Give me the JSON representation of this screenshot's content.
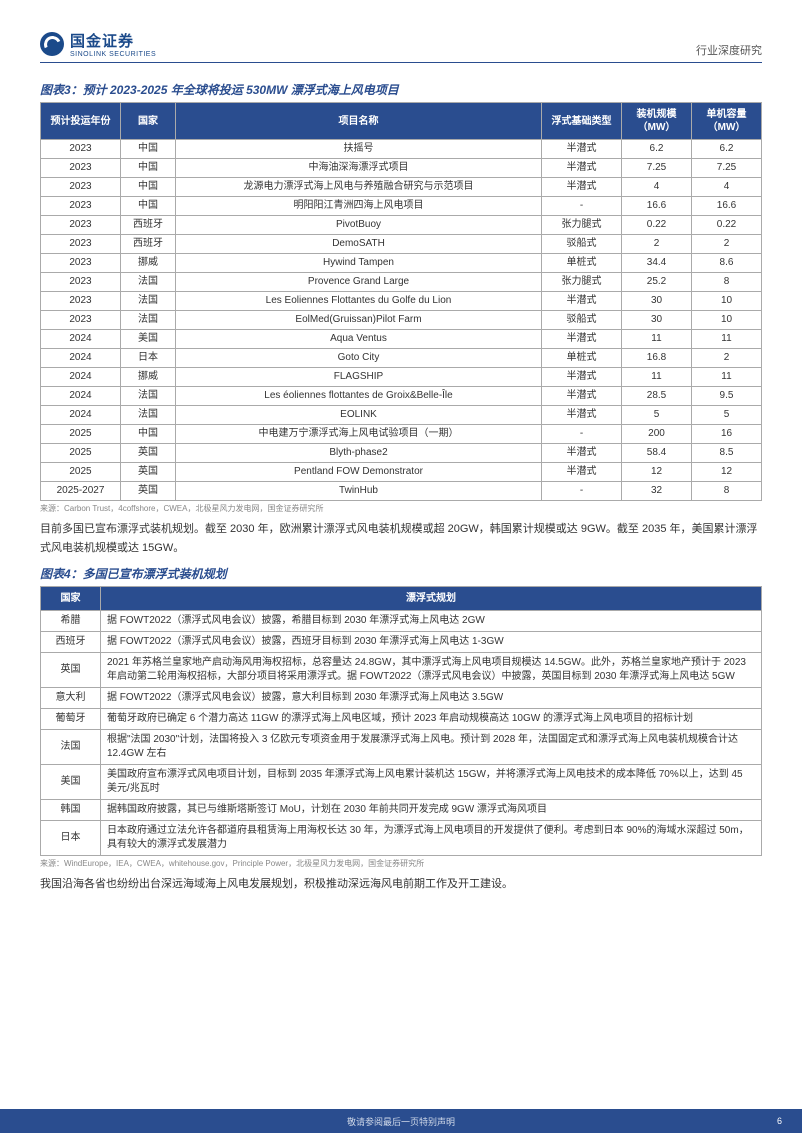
{
  "header": {
    "logo_cn": "国金证券",
    "logo_en": "SINOLINK SECURITIES",
    "doc_type": "行业深度研究"
  },
  "chart3": {
    "title": "图表3：预计 2023-2025 年全球将投运 530MW 漂浮式海上风电项目",
    "columns": [
      "预计投运年份",
      "国家",
      "项目名称",
      "浮式基础类型",
      "装机规模（MW）",
      "单机容量（MW）"
    ],
    "rows": [
      [
        "2023",
        "中国",
        "扶摇号",
        "半潜式",
        "6.2",
        "6.2"
      ],
      [
        "2023",
        "中国",
        "中海油深海漂浮式项目",
        "半潜式",
        "7.25",
        "7.25"
      ],
      [
        "2023",
        "中国",
        "龙源电力漂浮式海上风电与养殖融合研究与示范项目",
        "半潜式",
        "4",
        "4"
      ],
      [
        "2023",
        "中国",
        "明阳阳江青洲四海上风电项目",
        "-",
        "16.6",
        "16.6"
      ],
      [
        "2023",
        "西班牙",
        "PivotBuoy",
        "张力腿式",
        "0.22",
        "0.22"
      ],
      [
        "2023",
        "西班牙",
        "DemoSATH",
        "驳船式",
        "2",
        "2"
      ],
      [
        "2023",
        "挪威",
        "Hywind Tampen",
        "单桩式",
        "34.4",
        "8.6"
      ],
      [
        "2023",
        "法国",
        "Provence Grand Large",
        "张力腿式",
        "25.2",
        "8"
      ],
      [
        "2023",
        "法国",
        "Les Eoliennes Flottantes du Golfe du Lion",
        "半潜式",
        "30",
        "10"
      ],
      [
        "2023",
        "法国",
        "EolMed(Gruissan)Pilot Farm",
        "驳船式",
        "30",
        "10"
      ],
      [
        "2024",
        "美国",
        "Aqua Ventus",
        "半潜式",
        "11",
        "11"
      ],
      [
        "2024",
        "日本",
        "Goto City",
        "单桩式",
        "16.8",
        "2"
      ],
      [
        "2024",
        "挪威",
        "FLAGSHIP",
        "半潜式",
        "11",
        "11"
      ],
      [
        "2024",
        "法国",
        "Les éoliennes flottantes de Groix&Belle-Île",
        "半潜式",
        "28.5",
        "9.5"
      ],
      [
        "2024",
        "法国",
        "EOLINK",
        "半潜式",
        "5",
        "5"
      ],
      [
        "2025",
        "中国",
        "中电建万宁漂浮式海上风电试验项目（一期）",
        "-",
        "200",
        "16"
      ],
      [
        "2025",
        "英国",
        "Blyth-phase2",
        "半潜式",
        "58.4",
        "8.5"
      ],
      [
        "2025",
        "英国",
        "Pentland FOW Demonstrator",
        "半潜式",
        "12",
        "12"
      ],
      [
        "2025-2027",
        "英国",
        "TwinHub",
        "-",
        "32",
        "8"
      ]
    ],
    "source": "来源：Carbon Trust，4coffshore，CWEA，北极星风力发电网，国金证券研究所"
  },
  "para1": "目前多国已宣布漂浮式装机规划。截至 2030 年，欧洲累计漂浮式风电装机规模或超 20GW，韩国累计规模或达 9GW。截至 2035 年，美国累计漂浮式风电装机规模或达 15GW。",
  "chart4": {
    "title": "图表4：多国已宣布漂浮式装机规划",
    "columns": [
      "国家",
      "漂浮式规划"
    ],
    "rows": [
      [
        "希腊",
        "据 FOWT2022（漂浮式风电会议）披露，希腊目标到 2030 年漂浮式海上风电达 2GW"
      ],
      [
        "西班牙",
        "据 FOWT2022（漂浮式风电会议）披露，西班牙目标到 2030 年漂浮式海上风电达 1-3GW"
      ],
      [
        "英国",
        "2021 年苏格兰皇家地产启动海风用海权招标，总容量达 24.8GW，其中漂浮式海上风电项目规模达 14.5GW。此外，苏格兰皇家地产预计于 2023 年启动第二轮用海权招标，大部分项目将采用漂浮式。据 FOWT2022（漂浮式风电会议）中披露，英国目标到 2030 年漂浮式海上风电达 5GW"
      ],
      [
        "意大利",
        "据 FOWT2022（漂浮式风电会议）披露，意大利目标到 2030 年漂浮式海上风电达 3.5GW"
      ],
      [
        "葡萄牙",
        "葡萄牙政府已确定 6 个潜力高达 11GW 的漂浮式海上风电区域，预计 2023 年启动规模高达 10GW 的漂浮式海上风电项目的招标计划"
      ],
      [
        "法国",
        "根据\"法国 2030\"计划，法国将投入 3 亿欧元专项资金用于发展漂浮式海上风电。预计到 2028 年，法国固定式和漂浮式海上风电装机规模合计达 12.4GW 左右"
      ],
      [
        "美国",
        "美国政府宣布漂浮式风电项目计划，目标到 2035 年漂浮式海上风电累计装机达 15GW，并将漂浮式海上风电技术的成本降低 70%以上，达到 45 美元/兆瓦时"
      ],
      [
        "韩国",
        "据韩国政府披露，其已与维斯塔斯签订 MoU，计划在 2030 年前共同开发完成 9GW 漂浮式海风项目"
      ],
      [
        "日本",
        "日本政府通过立法允许各都道府县租赁海上用海权长达 30 年，为漂浮式海上风电项目的开发提供了便利。考虑到日本 90%的海域水深超过 50m，具有较大的漂浮式发展潜力"
      ]
    ],
    "source": "来源：WindEurope，IEA，CWEA，whitehouse.gov，Principle Power，北极星风力发电网，国金证券研究所"
  },
  "para2": "我国沿海各省也纷纷出台深远海域海上风电发展规划，积极推动深远海风电前期工作及开工建设。",
  "footer": {
    "disclaimer": "敬请参阅最后一页特别声明",
    "page": "6"
  },
  "colors": {
    "brand": "#2a4d8f",
    "header_bg": "#2a4d8f",
    "border": "#aaaaaa",
    "text": "#333333"
  }
}
